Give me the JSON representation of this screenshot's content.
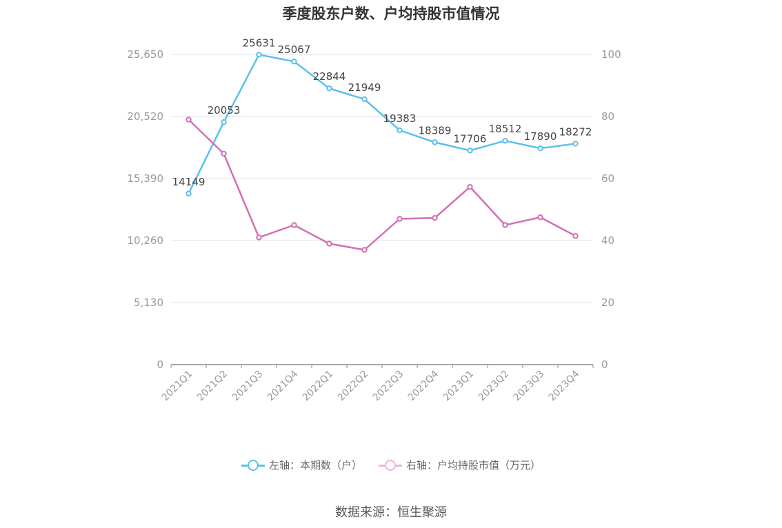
{
  "chart_data": {
    "type": "line",
    "title": "季度股东户数、户均持股市值情况",
    "categories": [
      "2021Q1",
      "2021Q2",
      "2021Q3",
      "2021Q4",
      "2022Q1",
      "2022Q2",
      "2022Q3",
      "2022Q4",
      "2023Q1",
      "2023Q2",
      "2023Q3",
      "2023Q4"
    ],
    "left_axis": {
      "ticks": [
        "0",
        "5,130",
        "10,260",
        "15,390",
        "20,520",
        "25,650"
      ],
      "ylim": [
        0,
        25650
      ]
    },
    "right_axis": {
      "ticks": [
        "0",
        "20",
        "40",
        "60",
        "80",
        "100"
      ],
      "ylim": [
        0,
        100
      ]
    },
    "grid": true,
    "legend_position": "bottom",
    "series": [
      {
        "name": "左轴：本期数（户）",
        "axis": "left",
        "color": "#5bc0eb",
        "values": [
          14149,
          20053,
          25631,
          25067,
          22844,
          21949,
          19383,
          18389,
          17706,
          18512,
          17890,
          18272
        ],
        "labels": [
          "14149",
          "20053",
          "25631",
          "25067",
          "22844",
          "21949",
          "19383",
          "18389",
          "17706",
          "18512",
          "17890",
          "18272"
        ]
      },
      {
        "name": "右轴：户均持股市值（万元）",
        "axis": "right",
        "color": "#d36fb3",
        "values": [
          79,
          68,
          41,
          45,
          39,
          37,
          47,
          47.3,
          57.3,
          45,
          47.5,
          41.5
        ]
      }
    ]
  },
  "source": "数据来源：恒生聚源"
}
